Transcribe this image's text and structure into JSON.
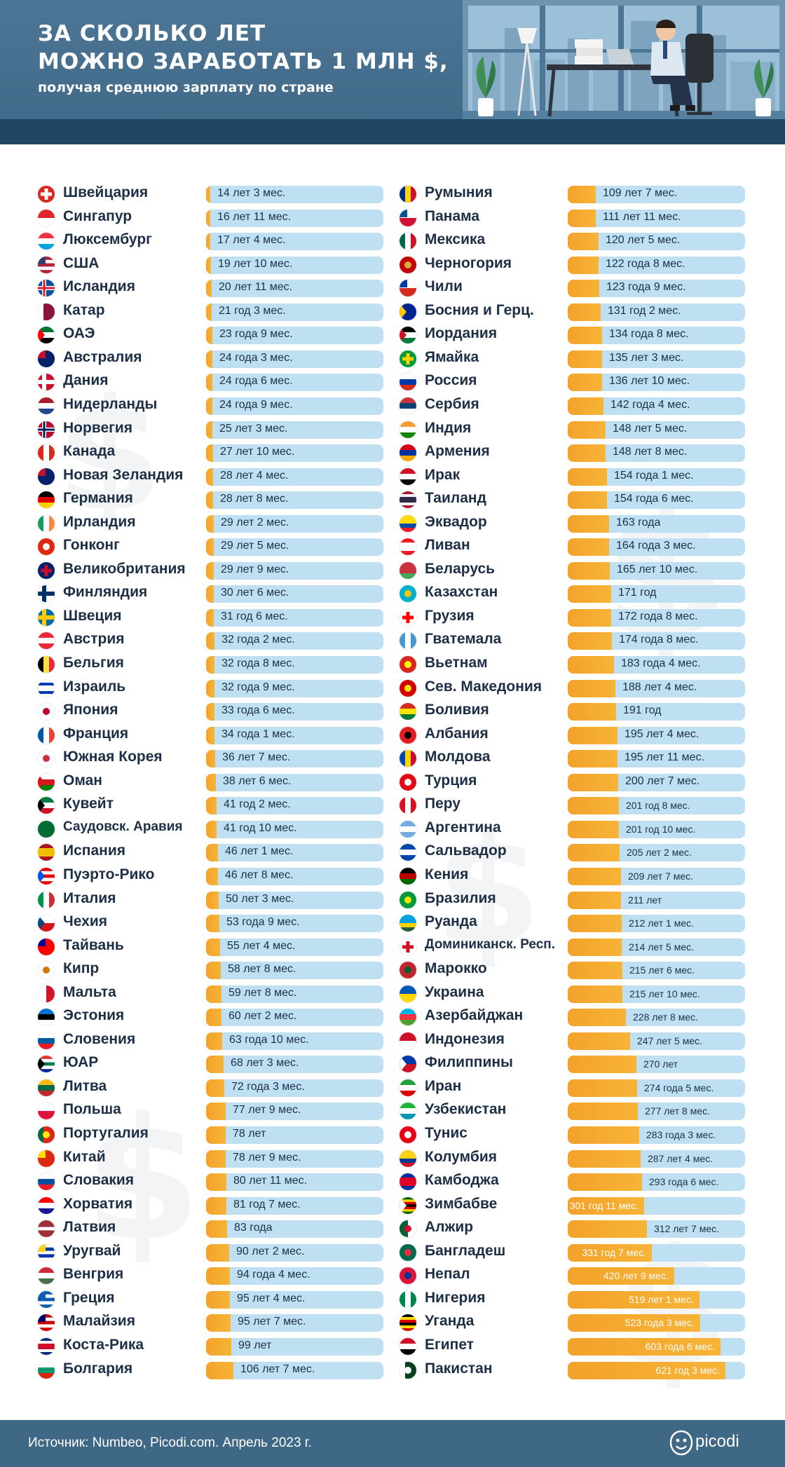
{
  "header": {
    "title_line1": "ЗА СКОЛЬКО ЛЕТ",
    "title_line2": "МОЖНО ЗАРАБОТАТЬ 1 МЛН $,",
    "subtitle": "получая среднюю зарплату по стране"
  },
  "footer": {
    "source": "Источник: Numbeo, Picodi.com. Апрель 2023 г.",
    "brand": "picodi"
  },
  "colors": {
    "header_bg": "#3f6786",
    "bar_fill": "#f3a22a",
    "bar_track": "#bfe0f2",
    "text": "#1d2f47"
  },
  "chart_data": {
    "type": "bar",
    "orientation": "horizontal",
    "unit": "years",
    "max_value": 700,
    "columns": [
      {
        "items": [
          {
            "country": "Швейцария",
            "label": "14 лет 3 мес.",
            "value": 14.25,
            "flag": "switzerland-flag"
          },
          {
            "country": "Сингапур",
            "label": "16 лет 11 мес.",
            "value": 16.92,
            "flag": "singapore-flag"
          },
          {
            "country": "Люксембург",
            "label": "17 лет 4 мес.",
            "value": 17.33,
            "flag": "luxembourg-flag"
          },
          {
            "country": "США",
            "label": "19 лет 10 мес.",
            "value": 19.83,
            "flag": "usa-flag"
          },
          {
            "country": "Исландия",
            "label": "20 лет 11 мес.",
            "value": 20.92,
            "flag": "iceland-flag"
          },
          {
            "country": "Катар",
            "label": "21 год 3 мес.",
            "value": 21.25,
            "flag": "qatar-flag"
          },
          {
            "country": "ОАЭ",
            "label": "23 года 9 мес.",
            "value": 23.75,
            "flag": "uae-flag"
          },
          {
            "country": "Австралия",
            "label": "24 года 3 мес.",
            "value": 24.25,
            "flag": "australia-flag"
          },
          {
            "country": "Дания",
            "label": "24 года 6 мес.",
            "value": 24.5,
            "flag": "denmark-flag"
          },
          {
            "country": "Нидерланды",
            "label": "24 года 9 мес.",
            "value": 24.75,
            "flag": "netherlands-flag"
          },
          {
            "country": "Норвегия",
            "label": "25 лет 3 мес.",
            "value": 25.25,
            "flag": "norway-flag"
          },
          {
            "country": "Канада",
            "label": "27 лет 10 мес.",
            "value": 27.83,
            "flag": "canada-flag"
          },
          {
            "country": "Новая Зеландия",
            "label": "28 лет 4 мес.",
            "value": 28.33,
            "flag": "new-zealand-flag"
          },
          {
            "country": "Германия",
            "label": "28 лет 8 мес.",
            "value": 28.67,
            "flag": "germany-flag"
          },
          {
            "country": "Ирландия",
            "label": "29 лет 2 мес.",
            "value": 29.17,
            "flag": "ireland-flag"
          },
          {
            "country": "Гонконг",
            "label": "29 лет 5 мес.",
            "value": 29.42,
            "flag": "hong-kong-flag"
          },
          {
            "country": "Великобритания",
            "label": "29 лет 9 мес.",
            "value": 29.75,
            "flag": "uk-flag"
          },
          {
            "country": "Финляндия",
            "label": "30 лет 6 мес.",
            "value": 30.5,
            "flag": "finland-flag"
          },
          {
            "country": "Швеция",
            "label": "31 год 6 мес.",
            "value": 31.5,
            "flag": "sweden-flag"
          },
          {
            "country": "Австрия",
            "label": "32 года 2 мес.",
            "value": 32.17,
            "flag": "austria-flag"
          },
          {
            "country": "Бельгия",
            "label": "32 года 8 мес.",
            "value": 32.67,
            "flag": "belgium-flag"
          },
          {
            "country": "Израиль",
            "label": "32 года 9 мес.",
            "value": 32.75,
            "flag": "israel-flag"
          },
          {
            "country": "Япония",
            "label": "33 года 6 мес.",
            "value": 33.5,
            "flag": "japan-flag"
          },
          {
            "country": "Франция",
            "label": "34 года 1 мес.",
            "value": 34.08,
            "flag": "france-flag"
          },
          {
            "country": "Южная Корея",
            "label": "36 лет 7 мес.",
            "value": 36.58,
            "flag": "south-korea-flag"
          },
          {
            "country": "Оман",
            "label": "38 лет 6 мес.",
            "value": 38.5,
            "flag": "oman-flag"
          },
          {
            "country": "Кувейт",
            "label": "41 год 2 мес.",
            "value": 41.17,
            "flag": "kuwait-flag"
          },
          {
            "country": "Саудовск. Аравия",
            "label": "41 год 10 мес.",
            "value": 41.83,
            "flag": "saudi-arabia-flag"
          },
          {
            "country": "Испания",
            "label": "46 лет 1 мес.",
            "value": 46.08,
            "flag": "spain-flag"
          },
          {
            "country": "Пуэрто-Рико",
            "label": "46 лет 8 мес.",
            "value": 46.67,
            "flag": "puerto-rico-flag"
          },
          {
            "country": "Италия",
            "label": "50 лет 3 мес.",
            "value": 50.25,
            "flag": "italy-flag"
          },
          {
            "country": "Чехия",
            "label": "53 года 9 мес.",
            "value": 53.75,
            "flag": "czechia-flag"
          },
          {
            "country": "Тайвань",
            "label": "55 лет 4 мес.",
            "value": 55.33,
            "flag": "taiwan-flag"
          },
          {
            "country": "Кипр",
            "label": "58 лет 8 мес.",
            "value": 58.67,
            "flag": "cyprus-flag"
          },
          {
            "country": "Мальта",
            "label": "59 лет 8 мес.",
            "value": 59.67,
            "flag": "malta-flag"
          },
          {
            "country": "Эстония",
            "label": "60 лет 2 мес.",
            "value": 60.17,
            "flag": "estonia-flag"
          },
          {
            "country": "Словения",
            "label": "63 года 10 мес.",
            "value": 63.83,
            "flag": "slovenia-flag"
          },
          {
            "country": "ЮАР",
            "label": "68 лет 3 мес.",
            "value": 68.25,
            "flag": "south-africa-flag"
          },
          {
            "country": "Литва",
            "label": "72 года 3 мес.",
            "value": 72.25,
            "flag": "lithuania-flag"
          },
          {
            "country": "Польша",
            "label": "77 лет 9 мес.",
            "value": 77.75,
            "flag": "poland-flag"
          },
          {
            "country": "Португалия",
            "label": "78 лет",
            "value": 78.0,
            "flag": "portugal-flag"
          },
          {
            "country": "Китай",
            "label": "78 лет 9 мес.",
            "value": 78.75,
            "flag": "china-flag"
          },
          {
            "country": "Словакия",
            "label": "80 лет 11 мес.",
            "value": 80.92,
            "flag": "slovakia-flag"
          },
          {
            "country": "Хорватия",
            "label": "81 год 7 мес.",
            "value": 81.58,
            "flag": "croatia-flag"
          },
          {
            "country": "Латвия",
            "label": "83 года",
            "value": 83.0,
            "flag": "latvia-flag"
          },
          {
            "country": "Уругвай",
            "label": "90 лет 2 мес.",
            "value": 90.17,
            "flag": "uruguay-flag"
          },
          {
            "country": "Венгрия",
            "label": "94 года 4 мес.",
            "value": 94.33,
            "flag": "hungary-flag"
          },
          {
            "country": "Греция",
            "label": "95 лет 4 мес.",
            "value": 95.33,
            "flag": "greece-flag"
          },
          {
            "country": "Малайзия",
            "label": "95 лет 7 мес.",
            "value": 95.58,
            "flag": "malaysia-flag"
          },
          {
            "country": "Коста-Рика",
            "label": "99 лет",
            "value": 99.0,
            "flag": "costa-rica-flag"
          },
          {
            "country": "Болгария",
            "label": "106 лет 7 мес.",
            "value": 106.58,
            "flag": "bulgaria-flag"
          }
        ]
      },
      {
        "items": [
          {
            "country": "Румыния",
            "label": "109 лет 7 мес.",
            "value": 109.58,
            "flag": "romania-flag"
          },
          {
            "country": "Панама",
            "label": "111 лет 11 мес.",
            "value": 111.92,
            "flag": "panama-flag"
          },
          {
            "country": "Мексика",
            "label": "120 лет 5 мес.",
            "value": 120.42,
            "flag": "mexico-flag"
          },
          {
            "country": "Черногория",
            "label": "122 года 8 мес.",
            "value": 122.67,
            "flag": "montenegro-flag"
          },
          {
            "country": "Чили",
            "label": "123 года 9 мес.",
            "value": 123.75,
            "flag": "chile-flag"
          },
          {
            "country": "Босния и Герц.",
            "label": "131 год 2 мес.",
            "value": 131.17,
            "flag": "bosnia-flag"
          },
          {
            "country": "Иордания",
            "label": "134 года 8 мес.",
            "value": 134.67,
            "flag": "jordan-flag"
          },
          {
            "country": "Ямайка",
            "label": "135 лет 3 мес.",
            "value": 135.25,
            "flag": "jamaica-flag"
          },
          {
            "country": "Россия",
            "label": "136 лет 10 мес.",
            "value": 136.83,
            "flag": "russia-flag"
          },
          {
            "country": "Сербия",
            "label": "142 года 4 мес.",
            "value": 142.33,
            "flag": "serbia-flag"
          },
          {
            "country": "Индия",
            "label": "148 лет 5 мес.",
            "value": 148.42,
            "flag": "india-flag"
          },
          {
            "country": "Армения",
            "label": "148 лет 8 мес.",
            "value": 148.67,
            "flag": "armenia-flag"
          },
          {
            "country": "Ирак",
            "label": "154 года 1 мес.",
            "value": 154.08,
            "flag": "iraq-flag"
          },
          {
            "country": "Таиланд",
            "label": "154 года 6 мес.",
            "value": 154.5,
            "flag": "thailand-flag"
          },
          {
            "country": "Эквадор",
            "label": "163 года",
            "value": 163.0,
            "flag": "ecuador-flag"
          },
          {
            "country": "Ливан",
            "label": "164 года 3 мес.",
            "value": 164.25,
            "flag": "lebanon-flag"
          },
          {
            "country": "Беларусь",
            "label": "165 лет 10 мес.",
            "value": 165.83,
            "flag": "belarus-flag"
          },
          {
            "country": "Казахстан",
            "label": "171 год",
            "value": 171.0,
            "flag": "kazakhstan-flag"
          },
          {
            "country": "Грузия",
            "label": "172 года 8 мес.",
            "value": 172.67,
            "flag": "georgia-flag"
          },
          {
            "country": "Гватемала",
            "label": "174 года 8 мес.",
            "value": 174.67,
            "flag": "guatemala-flag"
          },
          {
            "country": "Вьетнам",
            "label": "183 года 4 мес.",
            "value": 183.33,
            "flag": "vietnam-flag"
          },
          {
            "country": "Сев. Македония",
            "label": "188 лет 4 мес.",
            "value": 188.33,
            "flag": "north-macedonia-flag"
          },
          {
            "country": "Боливия",
            "label": "191 год",
            "value": 191.0,
            "flag": "bolivia-flag"
          },
          {
            "country": "Албания",
            "label": "195 лет 4 мес.",
            "value": 195.33,
            "flag": "albania-flag"
          },
          {
            "country": "Молдова",
            "label": "195 лет 11 мес.",
            "value": 195.92,
            "flag": "moldova-flag"
          },
          {
            "country": "Турция",
            "label": "200 лет 7 мес.",
            "value": 200.58,
            "flag": "turkey-flag"
          },
          {
            "country": "Перу",
            "label": "201 год 8 мес.",
            "value": 201.67,
            "flag": "peru-flag"
          },
          {
            "country": "Аргентина",
            "label": "201 год 10 мес.",
            "value": 201.83,
            "flag": "argentina-flag"
          },
          {
            "country": "Сальвадор",
            "label": "205 лет 2 мес.",
            "value": 205.17,
            "flag": "el-salvador-flag"
          },
          {
            "country": "Кения",
            "label": "209 лет 7 мес.",
            "value": 209.58,
            "flag": "kenya-flag"
          },
          {
            "country": "Бразилия",
            "label": "211 лет",
            "value": 211.0,
            "flag": "brazil-flag"
          },
          {
            "country": "Руанда",
            "label": "212 лет 1 мес.",
            "value": 212.08,
            "flag": "rwanda-flag"
          },
          {
            "country": "Доминиканск. Респ.",
            "label": "214 лет 5 мес.",
            "value": 214.42,
            "flag": "dominican-republic-flag"
          },
          {
            "country": "Марокко",
            "label": "215 лет 6 мес.",
            "value": 215.5,
            "flag": "morocco-flag"
          },
          {
            "country": "Украина",
            "label": "215 лет 10 мес.",
            "value": 215.83,
            "flag": "ukraine-flag"
          },
          {
            "country": "Азербайджан",
            "label": "228 лет 8 мес.",
            "value": 228.67,
            "flag": "azerbaijan-flag"
          },
          {
            "country": "Индонезия",
            "label": "247 лет 5 мес.",
            "value": 247.42,
            "flag": "indonesia-flag"
          },
          {
            "country": "Филиппины",
            "label": "270 лет",
            "value": 270.0,
            "flag": "philippines-flag"
          },
          {
            "country": "Иран",
            "label": "274 года 5 мес.",
            "value": 274.42,
            "flag": "iran-flag"
          },
          {
            "country": "Узбекистан",
            "label": "277 лет 8 мес.",
            "value": 277.67,
            "flag": "uzbekistan-flag"
          },
          {
            "country": "Тунис",
            "label": "283 года 3 мес.",
            "value": 283.25,
            "flag": "tunisia-flag"
          },
          {
            "country": "Колумбия",
            "label": "287 лет 4 мес.",
            "value": 287.33,
            "flag": "colombia-flag"
          },
          {
            "country": "Камбоджа",
            "label": "293 года 6 мес.",
            "value": 293.5,
            "flag": "cambodia-flag"
          },
          {
            "country": "Зимбабве",
            "label": "301 год 11 мес.",
            "value": 301.92,
            "flag": "zimbabwe-flag"
          },
          {
            "country": "Алжир",
            "label": "312 лет 7 мес.",
            "value": 312.58,
            "flag": "algeria-flag"
          },
          {
            "country": "Бангладеш",
            "label": "331 год 7 мес.",
            "value": 331.58,
            "flag": "bangladesh-flag"
          },
          {
            "country": "Непал",
            "label": "420 лет 9 мес.",
            "value": 420.75,
            "flag": "nepal-flag"
          },
          {
            "country": "Нигерия",
            "label": "519 лет 1 мес.",
            "value": 519.08,
            "flag": "nigeria-flag"
          },
          {
            "country": "Уганда",
            "label": "523 года 3 мес.",
            "value": 523.25,
            "flag": "uganda-flag"
          },
          {
            "country": "Египет",
            "label": "603 года 6 мес.",
            "value": 603.5,
            "flag": "egypt-flag"
          },
          {
            "country": "Пакистан",
            "label": "621 год 3 мес.",
            "value": 621.25,
            "flag": "pakistan-flag"
          }
        ]
      }
    ]
  }
}
